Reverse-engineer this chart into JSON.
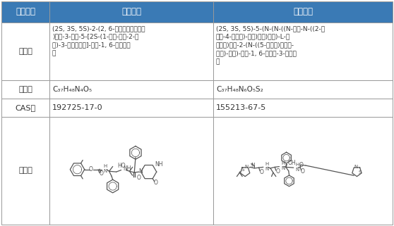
{
  "title_row": [
    "化学成分",
    "洛匹那韦",
    "利托那韦"
  ],
  "rows": [
    {
      "label": "化学名",
      "col1": "(2S, 3S, 5S)-2-(2, 6-二甲基苯氧乙酰基\n)氨基-3-羟基-5-[2S-(1-四氢-嘧啶-2-酮\n基)-3-甲基丁酰基]-氨基-1, 6-二苯基己\n烷",
      "col2": "(2S, 3S, 5S)-5-(N-(N-((N-甲基-N-((2-异\n丙基-4-噻唑基)-甲基)氨基)羰基)-L-缬\n氨酸基)氨基-2-(N-((5-噻唑基)甲氧基-\n羰基)-氨基)-氨基-1, 6-二苯基-3-羟基己\n烷"
    },
    {
      "label": "化学式",
      "col1": "C₃₇H₄₈N₄O₅",
      "col2": "C₃₇H₄₈N₆O₅S₂"
    },
    {
      "label": "CAS号",
      "col1": "192725-17-0",
      "col2": "155213-67-5"
    },
    {
      "label": "结构式",
      "col1": "",
      "col2": ""
    }
  ],
  "header_bg": "#3a7ab5",
  "header_text_color": "#ffffff",
  "cell_bg": "#ffffff",
  "border_color": "#999999",
  "text_color": "#333333",
  "fig_width": 5.58,
  "fig_height": 3.21
}
